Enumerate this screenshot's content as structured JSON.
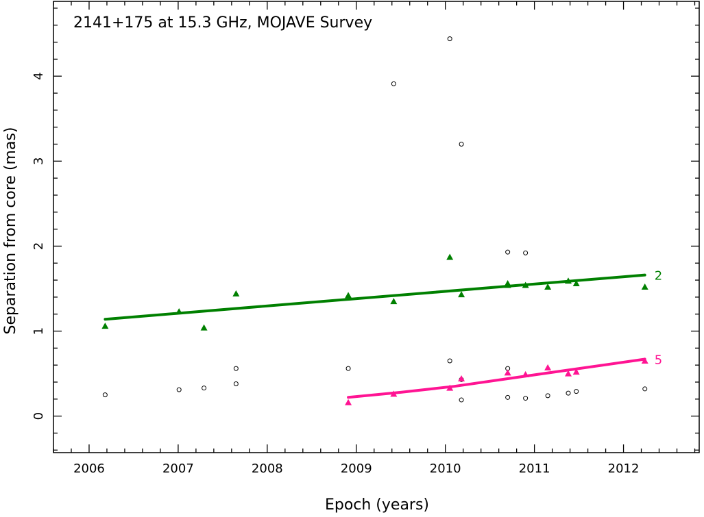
{
  "chart_data": {
    "type": "scatter",
    "title": "2141+175 at 15.3 GHz, MOJAVE Survey",
    "xlabel": "Epoch (years)",
    "ylabel": "Separation from core (mas)",
    "xlim": [
      2005.6,
      2012.85
    ],
    "ylim": [
      -0.43,
      4.88
    ],
    "xticks": [
      2006,
      2007,
      2008,
      2009,
      2010,
      2011,
      2012
    ],
    "yticks": [
      0,
      1,
      2,
      3,
      4
    ],
    "grid": false,
    "background_points": [
      [
        2006.18,
        0.25
      ],
      [
        2007.01,
        0.31
      ],
      [
        2007.29,
        0.33
      ],
      [
        2007.65,
        0.38
      ],
      [
        2007.65,
        0.56
      ],
      [
        2008.91,
        0.56
      ],
      [
        2009.42,
        3.91
      ],
      [
        2010.05,
        4.44
      ],
      [
        2010.05,
        0.65
      ],
      [
        2010.18,
        3.2
      ],
      [
        2010.18,
        0.43
      ],
      [
        2010.18,
        0.19
      ],
      [
        2010.7,
        1.93
      ],
      [
        2010.7,
        0.56
      ],
      [
        2010.7,
        0.22
      ],
      [
        2010.9,
        1.92
      ],
      [
        2010.9,
        0.21
      ],
      [
        2011.15,
        0.24
      ],
      [
        2011.38,
        0.27
      ],
      [
        2011.47,
        0.29
      ],
      [
        2012.24,
        0.32
      ]
    ],
    "series": [
      {
        "name": "2",
        "color": "#008000",
        "marker": "triangle",
        "points": [
          [
            2006.18,
            1.06
          ],
          [
            2007.01,
            1.23
          ],
          [
            2007.29,
            1.04
          ],
          [
            2007.65,
            1.44
          ],
          [
            2008.91,
            1.42
          ],
          [
            2009.42,
            1.35
          ],
          [
            2010.05,
            1.87
          ],
          [
            2010.18,
            1.43
          ],
          [
            2010.7,
            1.56
          ],
          [
            2010.7,
            1.54
          ],
          [
            2010.9,
            1.54
          ],
          [
            2011.15,
            1.52
          ],
          [
            2011.38,
            1.59
          ],
          [
            2011.47,
            1.56
          ],
          [
            2012.24,
            1.52
          ]
        ],
        "fit": [
          [
            2006.18,
            1.14
          ],
          [
            2012.24,
            1.66
          ]
        ]
      },
      {
        "name": "5",
        "color": "#ff1493",
        "marker": "triangle",
        "points": [
          [
            2008.91,
            0.16
          ],
          [
            2009.42,
            0.26
          ],
          [
            2010.05,
            0.33
          ],
          [
            2010.18,
            0.44
          ],
          [
            2010.7,
            0.51
          ],
          [
            2010.9,
            0.49
          ],
          [
            2011.15,
            0.57
          ],
          [
            2011.38,
            0.5
          ],
          [
            2011.47,
            0.52
          ],
          [
            2012.24,
            0.65
          ]
        ],
        "fit": [
          [
            2008.91,
            0.22
          ],
          [
            2009.5,
            0.28
          ],
          [
            2010.1,
            0.35
          ],
          [
            2010.7,
            0.44
          ],
          [
            2011.3,
            0.53
          ],
          [
            2012.24,
            0.67
          ]
        ]
      }
    ]
  }
}
